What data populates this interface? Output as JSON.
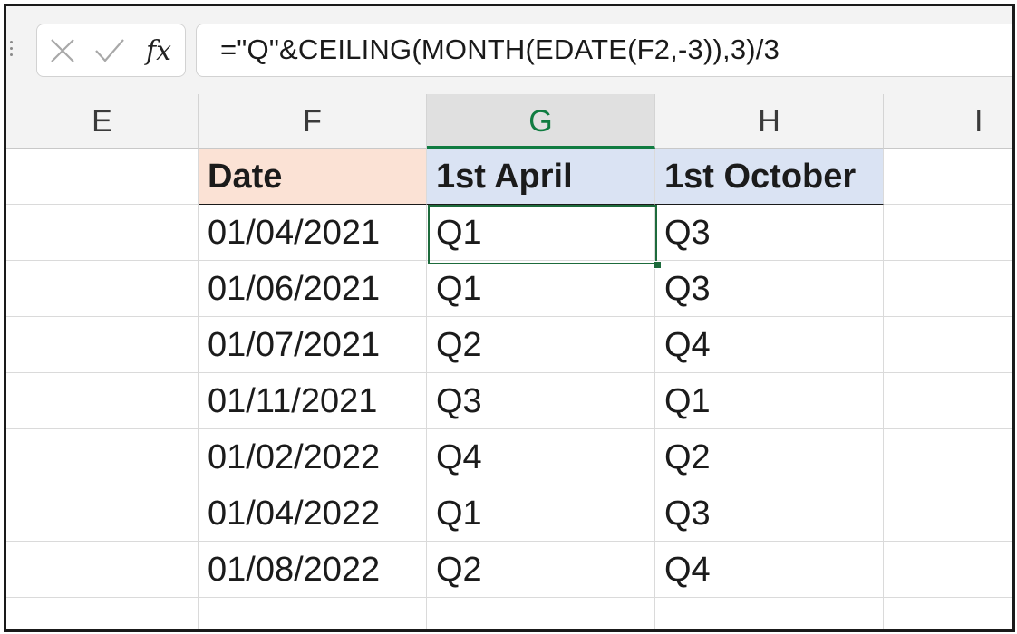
{
  "formula_bar": {
    "cancel_icon": "x-icon",
    "enter_icon": "checkmark-icon",
    "function_label": "fx",
    "formula": "=\"Q\"&CEILING(MONTH(EDATE(F2,-3)),3)/3"
  },
  "columns": [
    "E",
    "F",
    "G",
    "H",
    "I"
  ],
  "selected_column": "G",
  "headers": {
    "date": "Date",
    "april": "1st April",
    "october": "1st October"
  },
  "rows": [
    {
      "date": "01/04/2021",
      "april": "Q1",
      "october": "Q3"
    },
    {
      "date": "01/06/2021",
      "april": "Q1",
      "october": "Q3"
    },
    {
      "date": "01/07/2021",
      "april": "Q2",
      "october": "Q4"
    },
    {
      "date": "01/11/2021",
      "april": "Q3",
      "october": "Q1"
    },
    {
      "date": "01/02/2022",
      "april": "Q4",
      "october": "Q2"
    },
    {
      "date": "01/04/2022",
      "april": "Q1",
      "october": "Q3"
    },
    {
      "date": "01/08/2022",
      "april": "Q2",
      "october": "Q4"
    }
  ],
  "colors": {
    "accent_green": "#107c41",
    "date_header_fill": "#fbe2d5",
    "quarter_header_fill": "#dae3f3"
  }
}
